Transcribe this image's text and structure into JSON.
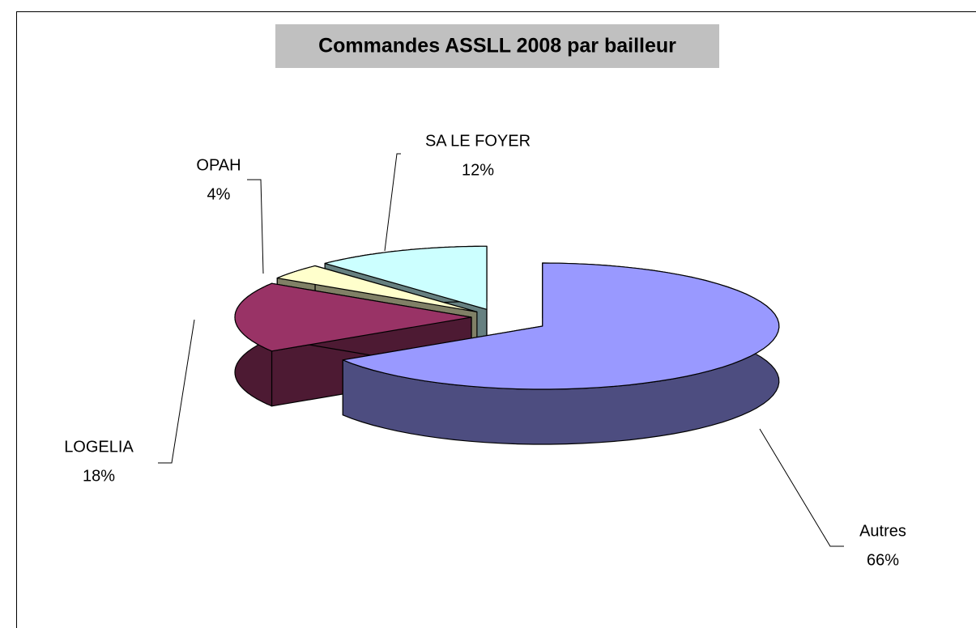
{
  "chart_data": {
    "type": "pie",
    "title": "Commandes ASSLL 2008 par bailleur",
    "categories": [
      "Autres",
      "LOGELIA",
      "OPAH",
      "SA LE FOYER"
    ],
    "values": [
      66,
      18,
      4,
      12
    ],
    "value_labels": [
      "66%",
      "18%",
      "4%",
      "12%"
    ],
    "colors": [
      "#9999ff",
      "#993366",
      "#ffffcc",
      "#ccffff"
    ]
  }
}
